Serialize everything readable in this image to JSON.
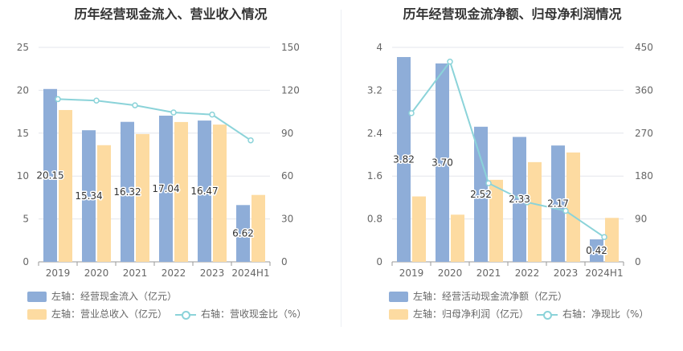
{
  "chart_data": [
    {
      "type": "bar",
      "title": "历年经营现金流入、营业收入情况",
      "categories": [
        "2019",
        "2020",
        "2021",
        "2022",
        "2023",
        "2024H1"
      ],
      "ylim_left": [
        0,
        25
      ],
      "yticks_left": [
        "0",
        "5",
        "10",
        "15",
        "20",
        "25"
      ],
      "ylim_right": [
        0,
        150
      ],
      "yticks_right": [
        "0",
        "30",
        "60",
        "90",
        "120",
        "150"
      ],
      "series": [
        {
          "name": "左轴：经营现金流入（亿元）",
          "axis": "left",
          "kind": "bar",
          "color": "#8eadd8",
          "values": [
            20.15,
            15.34,
            16.32,
            17.04,
            16.47,
            6.62
          ],
          "labels": [
            "20.15",
            "15.34",
            "16.32",
            "17.04",
            "16.47",
            "6.62"
          ]
        },
        {
          "name": "左轴：营业总收入（亿元）",
          "axis": "left",
          "kind": "bar",
          "color": "#fddba1",
          "values": [
            17.7,
            13.6,
            14.9,
            16.3,
            16.0,
            7.8
          ]
        },
        {
          "name": "右轴：营收现金比（%）",
          "axis": "right",
          "kind": "line",
          "color": "#8bd3d9",
          "values": [
            113.8,
            112.8,
            109.5,
            104.5,
            103.0,
            85.0
          ]
        }
      ],
      "grid": true,
      "legend_position": "bottom"
    },
    {
      "type": "bar",
      "title": "历年经营现金流净额、归母净利润情况",
      "categories": [
        "2019",
        "2020",
        "2021",
        "2022",
        "2023",
        "2024H1"
      ],
      "ylim_left": [
        0,
        4
      ],
      "yticks_left": [
        "0",
        "0.8",
        "1.6",
        "2.4",
        "3.2",
        "4"
      ],
      "ylim_right": [
        0,
        450
      ],
      "yticks_right": [
        "0",
        "90",
        "180",
        "270",
        "360",
        "450"
      ],
      "series": [
        {
          "name": "左轴：经营活动现金流净额（亿元）",
          "axis": "left",
          "kind": "bar",
          "color": "#8eadd8",
          "values": [
            3.82,
            3.7,
            2.52,
            2.33,
            2.17,
            0.42
          ],
          "labels": [
            "3.82",
            "3.70",
            "2.52",
            "2.33",
            "2.17",
            "0.42"
          ]
        },
        {
          "name": "左轴：归母净利润（亿元）",
          "axis": "left",
          "kind": "bar",
          "color": "#fddba1",
          "values": [
            1.22,
            0.88,
            1.53,
            1.86,
            2.04,
            0.82
          ]
        },
        {
          "name": "右轴：净现比（%）",
          "axis": "right",
          "kind": "line",
          "color": "#8bd3d9",
          "values": [
            312,
            420,
            165,
            125,
            107,
            52
          ]
        }
      ],
      "grid": true,
      "legend_position": "bottom"
    }
  ]
}
